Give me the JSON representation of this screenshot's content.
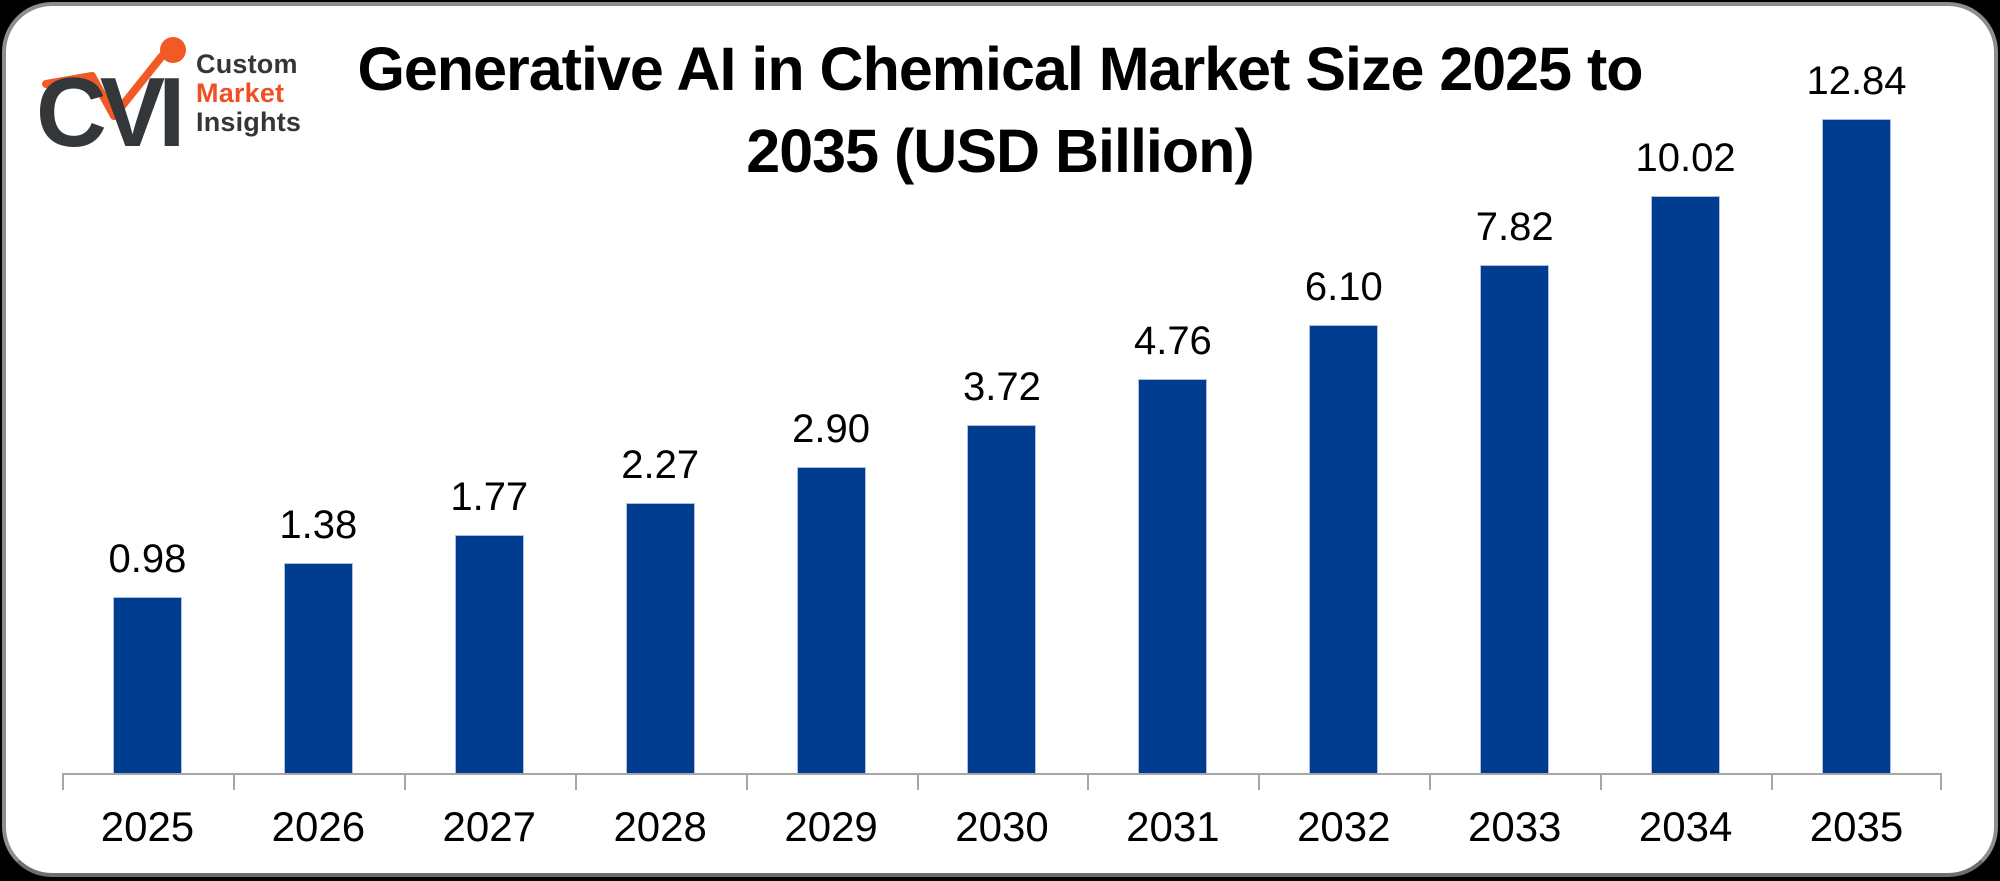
{
  "logo": {
    "mark_text": "CVI",
    "word1": "Custom",
    "word2": "Market",
    "word3": "Insights",
    "dark_color": "#33373a",
    "accent_color": "#f04e23"
  },
  "title": {
    "line1": "Generative AI in Chemical Market Size 2025 to",
    "line2": "2035 (USD Billion)"
  },
  "chart_data": {
    "type": "bar",
    "title": "Generative AI in Chemical Market Size 2025 to 2035 (USD Billion)",
    "unit": "USD Billion",
    "categories": [
      "2025",
      "2026",
      "2027",
      "2028",
      "2029",
      "2030",
      "2031",
      "2032",
      "2033",
      "2034",
      "2035"
    ],
    "values": [
      0.98,
      1.38,
      1.77,
      2.27,
      2.9,
      3.72,
      4.76,
      6.1,
      7.82,
      10.02,
      12.84
    ],
    "data_labels": [
      "0.98",
      "1.38",
      "1.77",
      "2.27",
      "2.90",
      "3.72",
      "4.76",
      "6.10",
      "7.82",
      "10.02",
      "12.84"
    ],
    "bar_color": "#003c90",
    "axis_color": "#a6a6a6",
    "label_color": "#000000",
    "background": "#ffffff",
    "grid": false,
    "legend": "none",
    "y_axis": "hidden"
  }
}
